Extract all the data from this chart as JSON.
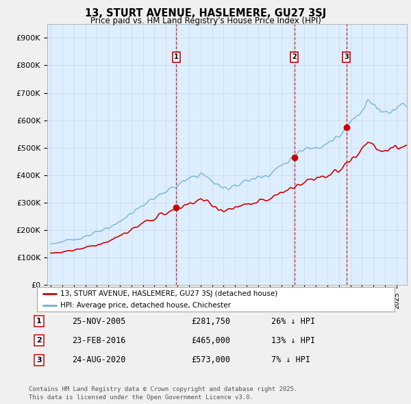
{
  "title": "13, STURT AVENUE, HASLEMERE, GU27 3SJ",
  "subtitle": "Price paid vs. HM Land Registry's House Price Index (HPI)",
  "ylim": [
    0,
    950000
  ],
  "yticks": [
    0,
    100000,
    200000,
    300000,
    400000,
    500000,
    600000,
    700000,
    800000,
    900000
  ],
  "ytick_labels": [
    "£0",
    "£100K",
    "£200K",
    "£300K",
    "£400K",
    "£500K",
    "£600K",
    "£700K",
    "£800K",
    "£900K"
  ],
  "hpi_color": "#6baed6",
  "price_color": "#cc0000",
  "vline_color": "#cc0000",
  "plot_bg": "#ddeeff",
  "background_color": "#f0f0f0",
  "purchases": [
    {
      "date_num": 2005.9,
      "price": 281750,
      "label": "1"
    },
    {
      "date_num": 2016.15,
      "price": 465000,
      "label": "2"
    },
    {
      "date_num": 2020.65,
      "price": 573000,
      "label": "3"
    }
  ],
  "legend_entries": [
    "13, STURT AVENUE, HASLEMERE, GU27 3SJ (detached house)",
    "HPI: Average price, detached house, Chichester"
  ],
  "footer": "Contains HM Land Registry data © Crown copyright and database right 2025.\nThis data is licensed under the Open Government Licence v3.0.",
  "table_rows": [
    {
      "num": "1",
      "date": "25-NOV-2005",
      "price": "£281,750",
      "hpi": "26% ↓ HPI"
    },
    {
      "num": "2",
      "date": "23-FEB-2016",
      "price": "£465,000",
      "hpi": "13% ↓ HPI"
    },
    {
      "num": "3",
      "date": "24-AUG-2020",
      "price": "£573,000",
      "hpi": "7% ↓ HPI"
    }
  ]
}
